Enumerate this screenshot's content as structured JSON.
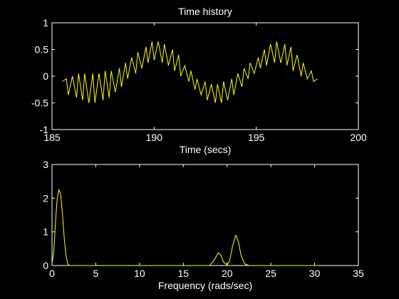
{
  "colors": {
    "background": "#000000",
    "axes": "#ffffff",
    "series": "#ffff00"
  },
  "chart_data": [
    {
      "type": "line",
      "title": "Time history",
      "xlabel": "Time (secs)",
      "ylabel": "",
      "xlim": [
        185,
        200
      ],
      "ylim": [
        -1,
        1
      ],
      "xticks": [
        185,
        190,
        195,
        200
      ],
      "xtick_labels": [
        "185",
        "190",
        "195",
        "200"
      ],
      "yticks": [
        -1,
        -0.5,
        0,
        0.5,
        1
      ],
      "ytick_labels": [
        "-1",
        "-0.5",
        "0",
        "0.5",
        "1"
      ],
      "grid": false,
      "series": [
        {
          "x": [
            185.5,
            185.7,
            185.8,
            186.0,
            186.2,
            186.3,
            186.5,
            186.6,
            186.8,
            187.0,
            187.1,
            187.3,
            187.5,
            187.6,
            187.8,
            187.9,
            188.1,
            188.3,
            188.4,
            188.6,
            188.7,
            188.9,
            189.1,
            189.2,
            189.4,
            189.6,
            189.7,
            189.9,
            190.0,
            190.2,
            190.4,
            190.5,
            190.7,
            190.9,
            191.0,
            191.2,
            191.3,
            191.5,
            191.7,
            191.8,
            192.0,
            192.1,
            192.3,
            192.5,
            192.6,
            192.8,
            193.0,
            193.1,
            193.3,
            193.4,
            193.6,
            193.8,
            193.9,
            194.1,
            194.3,
            194.4,
            194.6,
            194.7,
            194.9,
            195.1,
            195.2,
            195.4,
            195.5,
            195.7,
            195.9,
            196.0,
            196.2,
            196.4,
            196.5,
            196.7,
            196.8,
            197.0,
            197.2,
            197.3,
            197.5,
            197.7,
            197.8,
            198.0
          ],
          "values": [
            -0.1,
            -0.05,
            -0.35,
            0.0,
            -0.4,
            0.05,
            -0.45,
            0.05,
            -0.5,
            0.05,
            -0.5,
            0.05,
            -0.45,
            0.1,
            -0.4,
            0.1,
            -0.3,
            0.15,
            -0.2,
            0.25,
            -0.05,
            0.35,
            0.05,
            0.45,
            0.15,
            0.55,
            0.25,
            0.65,
            0.3,
            0.65,
            0.25,
            0.6,
            0.2,
            0.5,
            0.1,
            0.4,
            0.0,
            0.2,
            -0.1,
            0.1,
            -0.25,
            -0.05,
            -0.35,
            -0.1,
            -0.45,
            -0.15,
            -0.5,
            -0.15,
            -0.5,
            -0.1,
            -0.45,
            -0.05,
            -0.35,
            0.05,
            -0.2,
            0.15,
            -0.05,
            0.25,
            0.05,
            0.35,
            0.15,
            0.5,
            0.2,
            0.6,
            0.25,
            0.65,
            0.25,
            0.6,
            0.2,
            0.55,
            0.1,
            0.4,
            0.0,
            0.25,
            -0.05,
            0.1,
            -0.1,
            -0.05
          ]
        }
      ]
    },
    {
      "type": "line",
      "title": "",
      "xlabel": "Frequency (rads/sec)",
      "ylabel": "",
      "xlim": [
        0,
        35
      ],
      "ylim": [
        0,
        3
      ],
      "xticks": [
        0,
        5,
        10,
        15,
        20,
        25,
        30,
        35
      ],
      "xtick_labels": [
        "0",
        "5",
        "10",
        "15",
        "20",
        "25",
        "30",
        "35"
      ],
      "yticks": [
        0,
        1,
        2,
        3
      ],
      "ytick_labels": [
        "0",
        "1",
        "2",
        "3"
      ],
      "grid": false,
      "series": [
        {
          "x": [
            0.0,
            0.2,
            0.4,
            0.6,
            0.8,
            1.0,
            1.2,
            1.4,
            1.6,
            1.8,
            2.0,
            2.2,
            2.5,
            3,
            5,
            10,
            15,
            18.0,
            18.5,
            19.0,
            19.3,
            19.6,
            20.0,
            20.3,
            20.6,
            21.0,
            21.3,
            21.6,
            22.0,
            22.5,
            25,
            30.5
          ],
          "values": [
            0.05,
            0.4,
            1.3,
            2.0,
            2.25,
            2.1,
            1.5,
            0.8,
            0.3,
            0.05,
            0.0,
            0.0,
            0.0,
            0.0,
            0.0,
            0.0,
            0.0,
            0.0,
            0.15,
            0.38,
            0.3,
            0.1,
            0.02,
            0.15,
            0.55,
            0.9,
            0.7,
            0.3,
            0.05,
            0.0,
            0.0,
            0.0
          ]
        }
      ]
    }
  ]
}
